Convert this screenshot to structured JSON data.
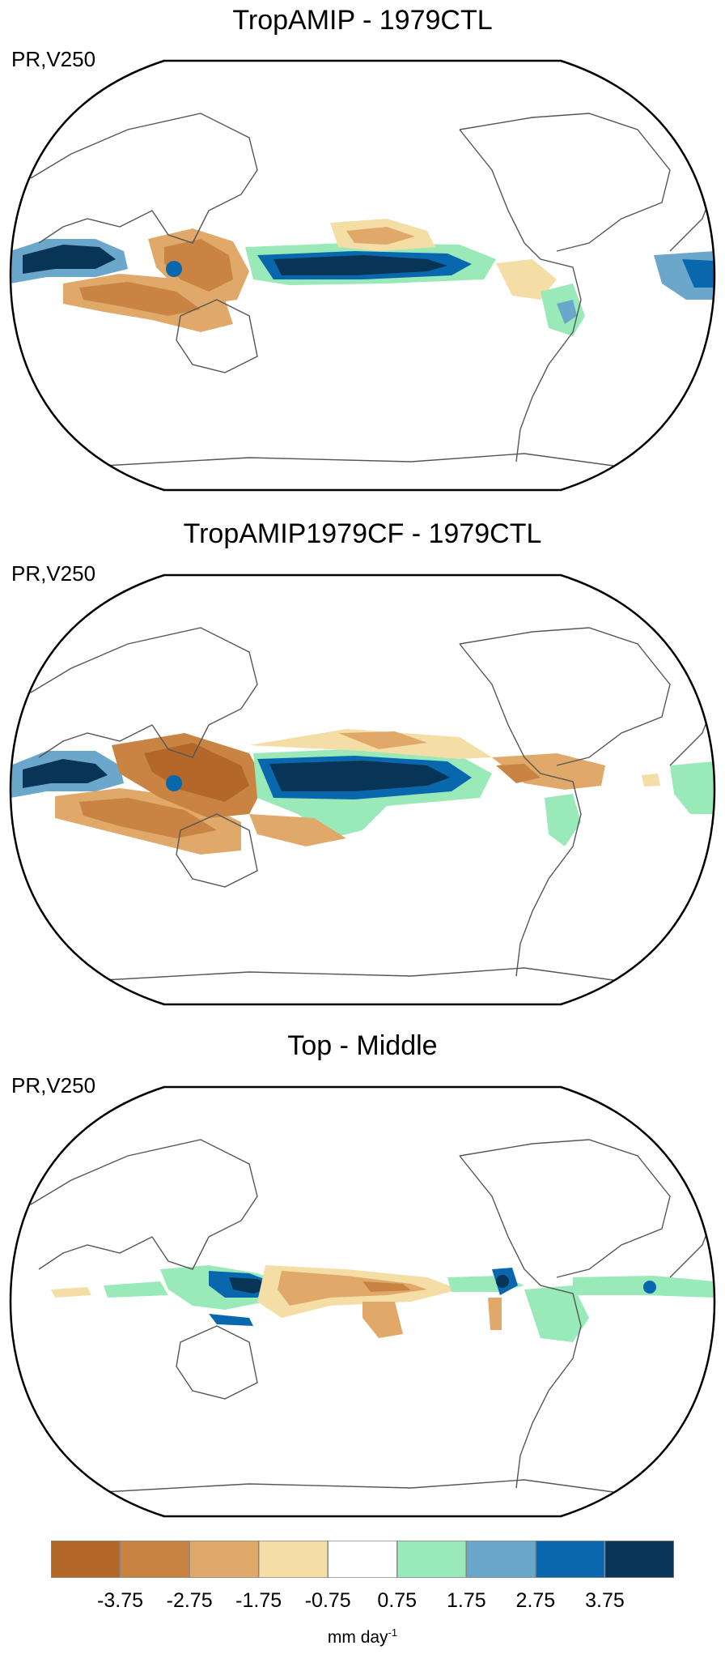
{
  "panels": [
    {
      "title": "TropAMIP - 1979CTL",
      "subtitle": "PR,V250"
    },
    {
      "title": "TropAMIP1979CF - 1979CTL",
      "subtitle": "PR,V250"
    },
    {
      "title": "Top - Middle",
      "subtitle": "PR,V250"
    }
  ],
  "colorbar": {
    "colors": [
      "#b3682a",
      "#c98443",
      "#e0a96a",
      "#f5dea5",
      "#ffffff",
      "#99e9b9",
      "#6ba7cb",
      "#0867ad",
      "#083455"
    ],
    "ticks": [
      "-3.75",
      "-2.75",
      "-1.75",
      "-0.75",
      "0.75",
      "1.75",
      "2.75",
      "3.75"
    ],
    "unit_text": "mm day",
    "unit_exp": "-1"
  }
}
